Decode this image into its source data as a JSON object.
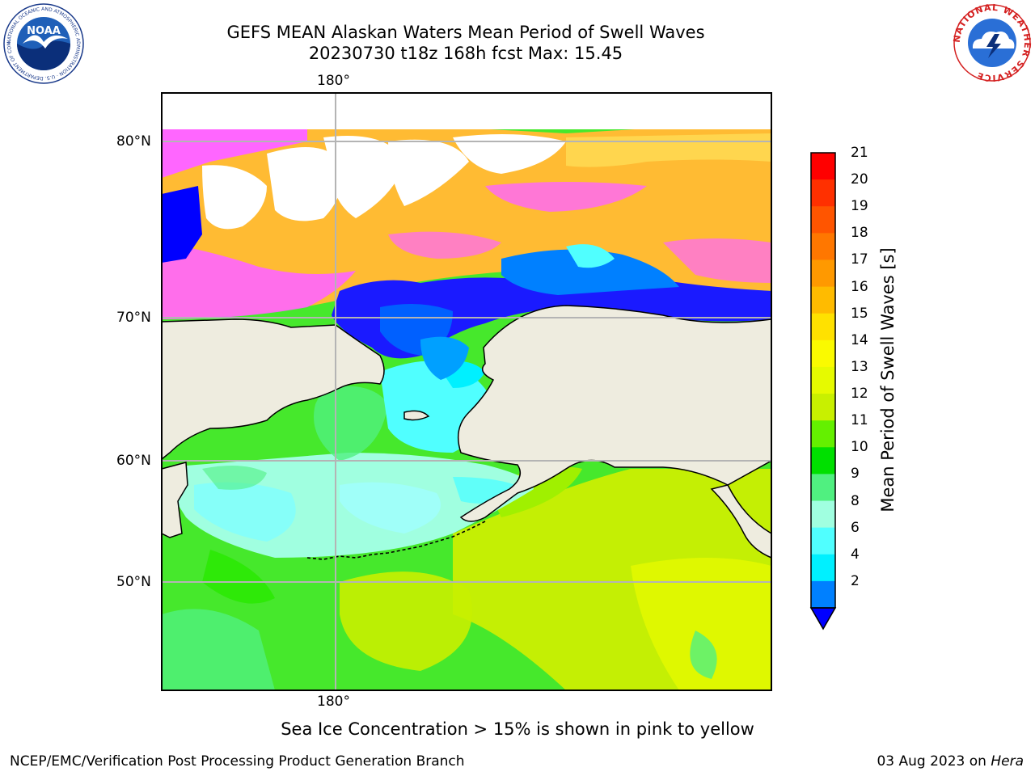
{
  "title": {
    "line1": "GEFS MEAN Alaskan Waters Mean Period of Swell Waves",
    "line2": "20230730 t18z 168h fcst   Max: 15.45"
  },
  "map": {
    "lon_labels": {
      "top": "180°",
      "bottom": "180°"
    },
    "lat_labels": [
      "80°N",
      "70°N",
      "60°N",
      "50°N"
    ],
    "land_color": "#eeecdf",
    "grid_color": "#b4b4b4"
  },
  "colorbar": {
    "title": "Mean Period of Swell Waves [s]",
    "ticks": [
      "21",
      "20",
      "19",
      "18",
      "17",
      "16",
      "15",
      "14",
      "13",
      "12",
      "11",
      "10",
      "9",
      "8",
      "6",
      "4",
      "2"
    ],
    "colors": [
      "#ff0000",
      "#ff3000",
      "#ff5500",
      "#ff7700",
      "#ff9900",
      "#ffbb00",
      "#ffe100",
      "#fafa00",
      "#e6fa00",
      "#c8f000",
      "#64f000",
      "#00e000",
      "#50f080",
      "#a0ffe0",
      "#50ffff",
      "#00f0ff",
      "#0080ff"
    ],
    "under_color": "#0000ff"
  },
  "caption": "Sea Ice Concentration > 15% is shown in pink to yellow",
  "footer": {
    "left": "NCEP/EMC/Verification Post Processing Product Generation Branch",
    "right_date": "03 Aug 2023 on ",
    "right_system": "Hera"
  },
  "logos": {
    "noaa_text": "NOAA",
    "noaa_ring": "NATIONAL OCEANIC AND ATMOSPHERIC ADMINISTRATION · U.S. DEPARTMENT OF COMMERCE",
    "nws_ring": "NATIONAL WEATHER SERVICE"
  }
}
